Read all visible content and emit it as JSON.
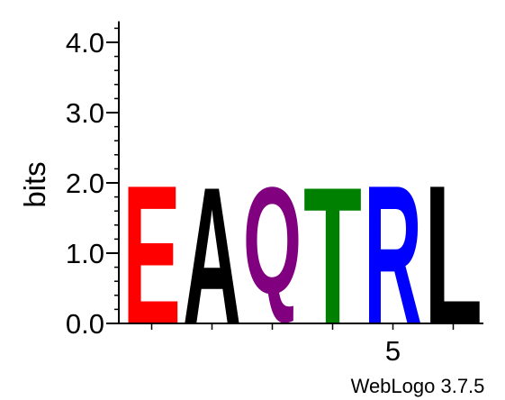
{
  "chart_data": {
    "type": "sequence-logo",
    "ylabel": "bits",
    "ylim": [
      0,
      4.3
    ],
    "y_ticks": [
      "0.0",
      "1.0",
      "2.0",
      "3.0",
      "4.0"
    ],
    "y_tick_values": [
      0,
      1,
      2,
      3,
      4
    ],
    "x_positions": [
      1,
      2,
      3,
      4,
      5,
      6
    ],
    "x_tick_labels": [
      {
        "position": 5,
        "label": "5"
      }
    ],
    "letters": [
      {
        "position": 1,
        "letter": "E",
        "bits": 1.95,
        "color": "#ff0000"
      },
      {
        "position": 2,
        "letter": "A",
        "bits": 1.95,
        "color": "#000000"
      },
      {
        "position": 3,
        "letter": "Q",
        "bits": 1.95,
        "color": "#800080"
      },
      {
        "position": 4,
        "letter": "T",
        "bits": 1.95,
        "color": "#008000"
      },
      {
        "position": 5,
        "letter": "R",
        "bits": 1.95,
        "color": "#0000ff"
      },
      {
        "position": 6,
        "letter": "L",
        "bits": 1.95,
        "color": "#000000"
      }
    ]
  },
  "credit": "WebLogo 3.7.5"
}
